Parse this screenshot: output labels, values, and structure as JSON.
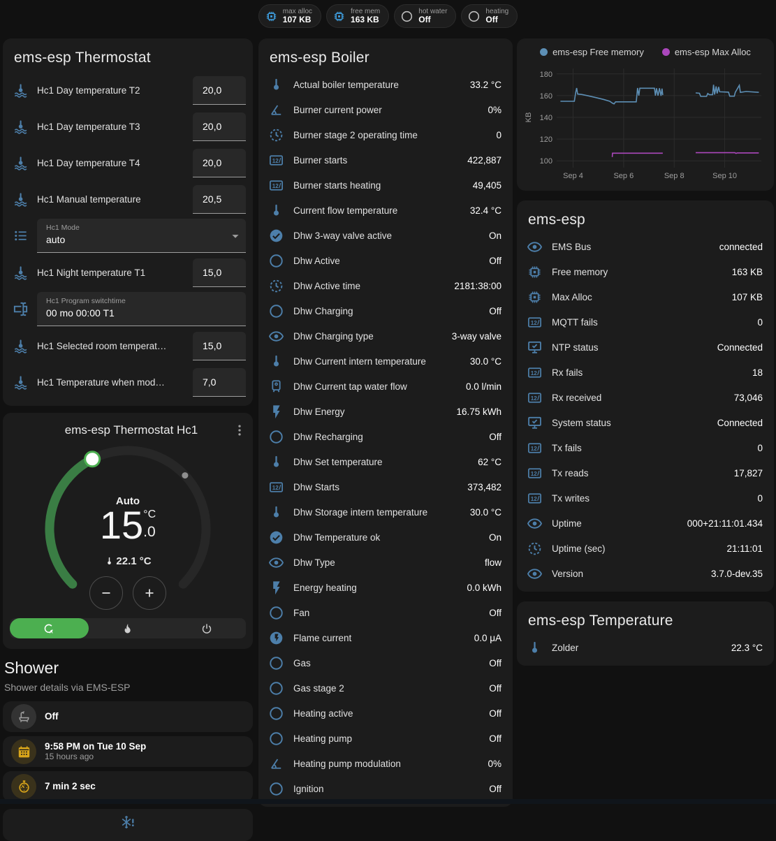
{
  "colors": {
    "accent_blue": "#4d7faa",
    "badge_blue": "#3f9fe0",
    "state_gray": "#bdbdbd",
    "green": "#4caf50",
    "dial_green": "#3a7d44",
    "amber": "#d9a51a",
    "free_memory_line": "#5d8fb5",
    "max_alloc_line": "#ab47bc"
  },
  "badges": [
    {
      "icon": "chip",
      "icon_color": "#3f9fe0",
      "label": "max alloc",
      "value": "107 KB"
    },
    {
      "icon": "chip",
      "icon_color": "#3f9fe0",
      "label": "free mem",
      "value": "163 KB"
    },
    {
      "icon": "circle-outline",
      "icon_color": "#bdbdbd",
      "label": "hot water",
      "value": "Off"
    },
    {
      "icon": "circle-outline",
      "icon_color": "#bdbdbd",
      "label": "heating",
      "value": "Off"
    }
  ],
  "thermostat_card": {
    "title": "ems-esp Thermostat",
    "rows": [
      {
        "type": "number",
        "icon": "home-thermometer",
        "label": "Hc1 Day temperature T2",
        "value": "20,0"
      },
      {
        "type": "number",
        "icon": "home-thermometer",
        "label": "Hc1 Day temperature T3",
        "value": "20,0"
      },
      {
        "type": "number",
        "icon": "home-thermometer",
        "label": "Hc1 Day temperature T4",
        "value": "20,0"
      },
      {
        "type": "number",
        "icon": "home-thermometer",
        "label": "Hc1 Manual temperature",
        "value": "20,5"
      },
      {
        "type": "select",
        "icon": "format-list",
        "label": "Hc1 Mode",
        "value": "auto"
      },
      {
        "type": "number",
        "icon": "home-thermometer",
        "label": "Hc1 Night temperature T1",
        "value": "15,0"
      },
      {
        "type": "text",
        "icon": "form-textbox",
        "label": "Hc1 Program switchtime",
        "value": "00 mo 00:00 T1"
      },
      {
        "type": "number",
        "icon": "home-thermometer",
        "label": "Hc1 Selected room temperat…",
        "value": "15,0"
      },
      {
        "type": "number",
        "icon": "home-thermometer",
        "label": "Hc1 Temperature when mod…",
        "value": "7,0"
      }
    ]
  },
  "dial_card": {
    "title": "ems-esp Thermostat Hc1",
    "mode_label": "Auto",
    "target_int": "15",
    "target_unit": "°C",
    "target_frac": ".0",
    "current_temperature": "22.1 °C",
    "modes": [
      {
        "name": "auto",
        "icon": "thermostat-auto",
        "active": true
      },
      {
        "name": "heat",
        "icon": "fire",
        "active": false
      },
      {
        "name": "off",
        "icon": "power",
        "active": false
      }
    ]
  },
  "shower": {
    "title": "Shower",
    "subtitle": "Shower details via EMS-ESP",
    "tiles": [
      {
        "icon": "bathtub",
        "icon_color": "#9e9e9e",
        "icon_bg": "rgba(158,158,158,0.18)",
        "primary": "Off",
        "secondary": ""
      },
      {
        "icon": "calendar",
        "icon_color": "#d9a51a",
        "icon_bg": "rgba(217,165,26,0.16)",
        "primary": "9:58 PM on Tue 10 Sep",
        "secondary": "15 hours ago"
      },
      {
        "icon": "timer",
        "icon_color": "#d9a51a",
        "icon_bg": "rgba(217,165,26,0.16)",
        "primary": "7 min 2 sec",
        "secondary": ""
      }
    ],
    "pending_icon": "snowflake-alert"
  },
  "boiler_card": {
    "title": "ems-esp Boiler",
    "rows": [
      {
        "icon": "thermometer",
        "label": "Actual boiler temperature",
        "value": "33.2 °C"
      },
      {
        "icon": "angle-acute",
        "label": "Burner current power",
        "value": "0%"
      },
      {
        "icon": "progress-clock",
        "label": "Burner stage 2 operating time",
        "value": "0"
      },
      {
        "icon": "counter",
        "label": "Burner starts",
        "value": "422,887"
      },
      {
        "icon": "counter",
        "label": "Burner starts heating",
        "value": "49,405"
      },
      {
        "icon": "thermometer",
        "label": "Current flow temperature",
        "value": "32.4 °C"
      },
      {
        "icon": "check-circle",
        "label": "Dhw 3-way valve active",
        "value": "On"
      },
      {
        "icon": "circle-outline",
        "label": "Dhw Active",
        "value": "Off"
      },
      {
        "icon": "progress-clock",
        "label": "Dhw Active time",
        "value": "2181:38:00"
      },
      {
        "icon": "circle-outline",
        "label": "Dhw Charging",
        "value": "Off"
      },
      {
        "icon": "eye",
        "label": "Dhw Charging type",
        "value": "3-way valve"
      },
      {
        "icon": "thermometer",
        "label": "Dhw Current intern temperature",
        "value": "30.0 °C"
      },
      {
        "icon": "water-heater",
        "label": "Dhw Current tap water flow",
        "value": "0.0 l/min"
      },
      {
        "icon": "flash",
        "label": "Dhw Energy",
        "value": "16.75 kWh"
      },
      {
        "icon": "circle-outline",
        "label": "Dhw Recharging",
        "value": "Off"
      },
      {
        "icon": "thermometer",
        "label": "Dhw Set temperature",
        "value": "62 °C"
      },
      {
        "icon": "counter",
        "label": "Dhw Starts",
        "value": "373,482"
      },
      {
        "icon": "thermometer",
        "label": "Dhw Storage intern temperature",
        "value": "30.0 °C"
      },
      {
        "icon": "check-circle",
        "label": "Dhw Temperature ok",
        "value": "On"
      },
      {
        "icon": "eye",
        "label": "Dhw Type",
        "value": "flow"
      },
      {
        "icon": "flash",
        "label": "Energy heating",
        "value": "0.0 kWh"
      },
      {
        "icon": "circle-outline",
        "label": "Fan",
        "value": "Off"
      },
      {
        "icon": "flash-circle",
        "label": "Flame current",
        "value": "0.0 μA"
      },
      {
        "icon": "circle-outline",
        "label": "Gas",
        "value": "Off"
      },
      {
        "icon": "circle-outline",
        "label": "Gas stage 2",
        "value": "Off"
      },
      {
        "icon": "circle-outline",
        "label": "Heating active",
        "value": "Off"
      },
      {
        "icon": "circle-outline",
        "label": "Heating pump",
        "value": "Off"
      },
      {
        "icon": "angle-acute",
        "label": "Heating pump modulation",
        "value": "0%"
      },
      {
        "icon": "circle-outline",
        "label": "Ignition",
        "value": "Off"
      }
    ]
  },
  "device_card": {
    "title": "ems-esp",
    "rows": [
      {
        "icon": "eye",
        "label": "EMS Bus",
        "value": "connected"
      },
      {
        "icon": "chip",
        "label": "Free memory",
        "value": "163 KB"
      },
      {
        "icon": "chip",
        "label": "Max Alloc",
        "value": "107 KB"
      },
      {
        "icon": "counter",
        "label": "MQTT fails",
        "value": "0"
      },
      {
        "icon": "monitor-check",
        "label": "NTP status",
        "value": "Connected"
      },
      {
        "icon": "counter",
        "label": "Rx fails",
        "value": "18"
      },
      {
        "icon": "counter",
        "label": "Rx received",
        "value": "73,046"
      },
      {
        "icon": "monitor-check",
        "label": "System status",
        "value": "Connected"
      },
      {
        "icon": "counter",
        "label": "Tx fails",
        "value": "0"
      },
      {
        "icon": "counter",
        "label": "Tx reads",
        "value": "17,827"
      },
      {
        "icon": "counter",
        "label": "Tx writes",
        "value": "0"
      },
      {
        "icon": "eye",
        "label": "Uptime",
        "value": "000+21:11:01.434"
      },
      {
        "icon": "progress-clock",
        "label": "Uptime (sec)",
        "value": "21:11:01"
      },
      {
        "icon": "eye",
        "label": "Version",
        "value": "3.7.0-dev.35"
      }
    ]
  },
  "temp_card": {
    "title": "ems-esp Temperature",
    "rows": [
      {
        "icon": "thermometer",
        "label": "Zolder",
        "value": "22.3 °C"
      }
    ]
  },
  "chart_data": {
    "type": "line",
    "title": "",
    "xlabel": "",
    "ylabel": "KB",
    "ylim": [
      95,
      185
    ],
    "yticks": [
      100,
      120,
      140,
      160,
      180
    ],
    "xlim": [
      3.35,
      11.45
    ],
    "xticks": [
      {
        "v": 4,
        "label": "Sep 4"
      },
      {
        "v": 6,
        "label": "Sep 6"
      },
      {
        "v": 8,
        "label": "Sep 8"
      },
      {
        "v": 10,
        "label": "Sep 10"
      }
    ],
    "grid": true,
    "legend_position": "top",
    "series": [
      {
        "name": "ems-esp Free memory",
        "color": "#5d8fb5",
        "points": [
          [
            3.5,
            154.8
          ],
          [
            4.05,
            154.8
          ],
          [
            4.1,
            162.5
          ],
          [
            4.14,
            167
          ],
          [
            4.18,
            161.5
          ],
          [
            4.35,
            161
          ],
          [
            4.6,
            159.8
          ],
          [
            4.9,
            158.2
          ],
          [
            5.2,
            156.5
          ],
          [
            5.45,
            154.8
          ],
          [
            5.55,
            153.2
          ],
          [
            5.62,
            152.4
          ],
          [
            5.68,
            154.3
          ],
          [
            6.5,
            154.3
          ],
          [
            6.55,
            167
          ],
          [
            6.6,
            160
          ],
          [
            6.64,
            166.8
          ],
          [
            7.22,
            166.8
          ],
          [
            7.26,
            160
          ],
          [
            7.3,
            166.8
          ],
          [
            7.36,
            160
          ],
          [
            7.42,
            166.8
          ],
          [
            7.48,
            159.8
          ],
          [
            7.52,
            166.5
          ],
          [
            7.55,
            160.5
          ],
          null,
          [
            8.85,
            162.5
          ],
          [
            9.0,
            162.2
          ],
          [
            9.05,
            159.3
          ],
          [
            9.28,
            159.3
          ],
          [
            9.33,
            162
          ],
          [
            9.4,
            160.8
          ],
          [
            9.52,
            160.8
          ],
          [
            9.56,
            170
          ],
          [
            9.6,
            161
          ],
          [
            9.66,
            168.5
          ],
          [
            9.7,
            162
          ],
          [
            9.76,
            168
          ],
          [
            9.8,
            163.5
          ],
          [
            10.15,
            163.2
          ],
          [
            10.2,
            159.5
          ],
          [
            10.38,
            159.5
          ],
          [
            10.42,
            163
          ],
          [
            10.58,
            169.5
          ],
          [
            10.62,
            163
          ],
          [
            10.85,
            163.8
          ],
          [
            11.35,
            163
          ]
        ]
      },
      {
        "name": "ems-esp Max Alloc",
        "color": "#ab47bc",
        "points": [
          [
            5.55,
            103.5
          ],
          [
            5.56,
            107
          ],
          [
            7.55,
            107
          ],
          null,
          [
            8.85,
            107.5
          ],
          [
            10.4,
            107.5
          ],
          [
            10.45,
            106.8
          ],
          [
            10.5,
            107.3
          ],
          [
            11.35,
            107.3
          ]
        ]
      }
    ]
  }
}
